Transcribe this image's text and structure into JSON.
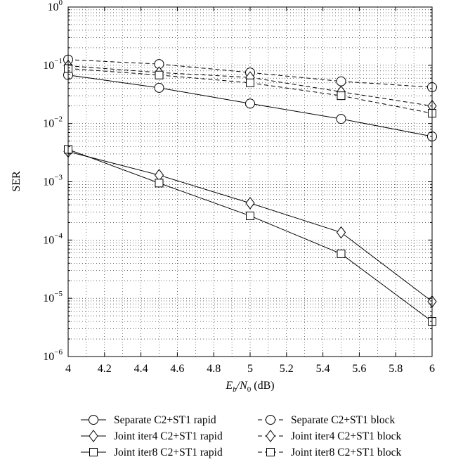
{
  "chart_data": {
    "type": "line",
    "xlabel": {
      "pre": "E",
      "sub1": "b",
      "mid": "/N",
      "sub2": "0",
      "post": " (dB)"
    },
    "ylabel": "SER",
    "xlim": [
      4,
      6
    ],
    "ylim": [
      1e-06,
      1
    ],
    "yscale": "log",
    "grid": true,
    "legend_position": "bottom",
    "x_ticks": [
      4,
      4.2,
      4.4,
      4.6,
      4.8,
      5,
      5.2,
      5.4,
      5.6,
      5.8,
      6
    ],
    "x_tick_labels": [
      "4",
      "4.2",
      "4.4",
      "4.6",
      "4.8",
      "5",
      "5.2",
      "5.4",
      "5.6",
      "5.8",
      "6"
    ],
    "y_ticks": [
      {
        "value": 1e-06,
        "base": "10",
        "exp": "−6"
      },
      {
        "value": 1e-05,
        "base": "10",
        "exp": "−5"
      },
      {
        "value": 0.0001,
        "base": "10",
        "exp": "−4"
      },
      {
        "value": 0.001,
        "base": "10",
        "exp": "−3"
      },
      {
        "value": 0.01,
        "base": "10",
        "exp": "−2"
      },
      {
        "value": 0.1,
        "base": "10",
        "exp": "−1"
      },
      {
        "value": 1,
        "base": "10",
        "exp": "0"
      }
    ],
    "x": [
      4,
      4.5,
      5,
      5.5,
      6
    ],
    "series": [
      {
        "name": "Separate C2+ST1 rapid",
        "marker": "circle",
        "dashed": false,
        "values": [
          0.068,
          0.041,
          0.022,
          0.012,
          0.006
        ]
      },
      {
        "name": "Separate C2+ST1 block",
        "marker": "circle",
        "dashed": true,
        "values": [
          0.125,
          0.105,
          0.075,
          0.053,
          0.042
        ]
      },
      {
        "name": "Joint iter4 C2+ST1 rapid",
        "marker": "diamond",
        "dashed": false,
        "values": [
          0.0033,
          0.0013,
          0.00043,
          0.000135,
          8.8e-06
        ]
      },
      {
        "name": "Joint iter4 C2+ST1 block",
        "marker": "diamond",
        "dashed": true,
        "values": [
          0.098,
          0.075,
          0.062,
          0.035,
          0.02
        ]
      },
      {
        "name": "Joint iter8 C2+ST1 rapid",
        "marker": "square",
        "dashed": false,
        "values": [
          0.0036,
          0.00095,
          0.00026,
          5.8e-05,
          4e-06
        ]
      },
      {
        "name": "Joint iter8 C2+ST1 block",
        "marker": "square",
        "dashed": true,
        "values": [
          0.088,
          0.068,
          0.05,
          0.03,
          0.015
        ]
      }
    ]
  }
}
